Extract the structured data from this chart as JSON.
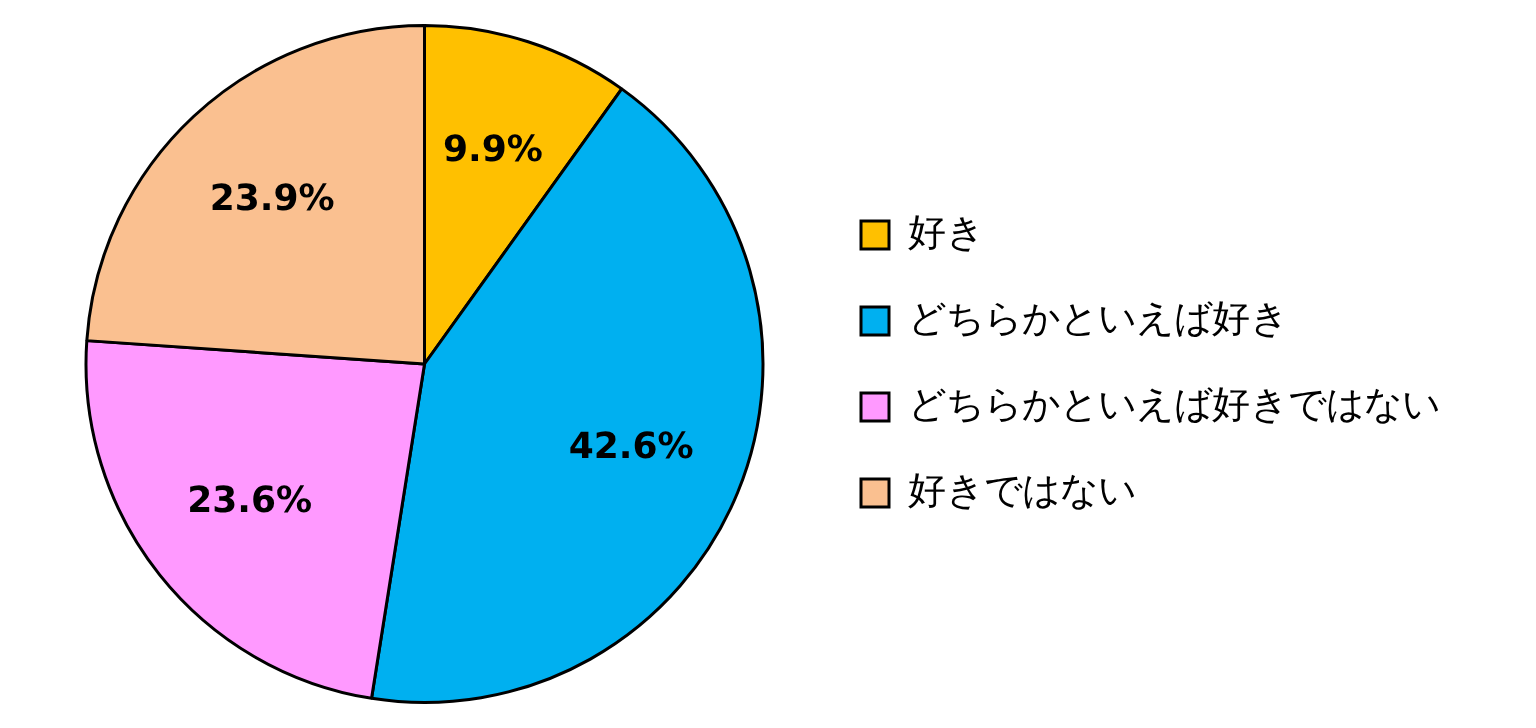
{
  "chart_data": {
    "type": "pie",
    "categories": [
      "好き",
      "どちらかといえば好き",
      "どちらかといえば好きではない",
      "好きではない"
    ],
    "values": [
      9.9,
      42.6,
      23.6,
      23.9
    ],
    "colors": [
      "#ffc000",
      "#00b0f0",
      "#ff99ff",
      "#fac090"
    ],
    "value_labels": [
      "9.9%",
      "42.6%",
      "23.6%",
      "23.9%"
    ],
    "legend": "right"
  }
}
